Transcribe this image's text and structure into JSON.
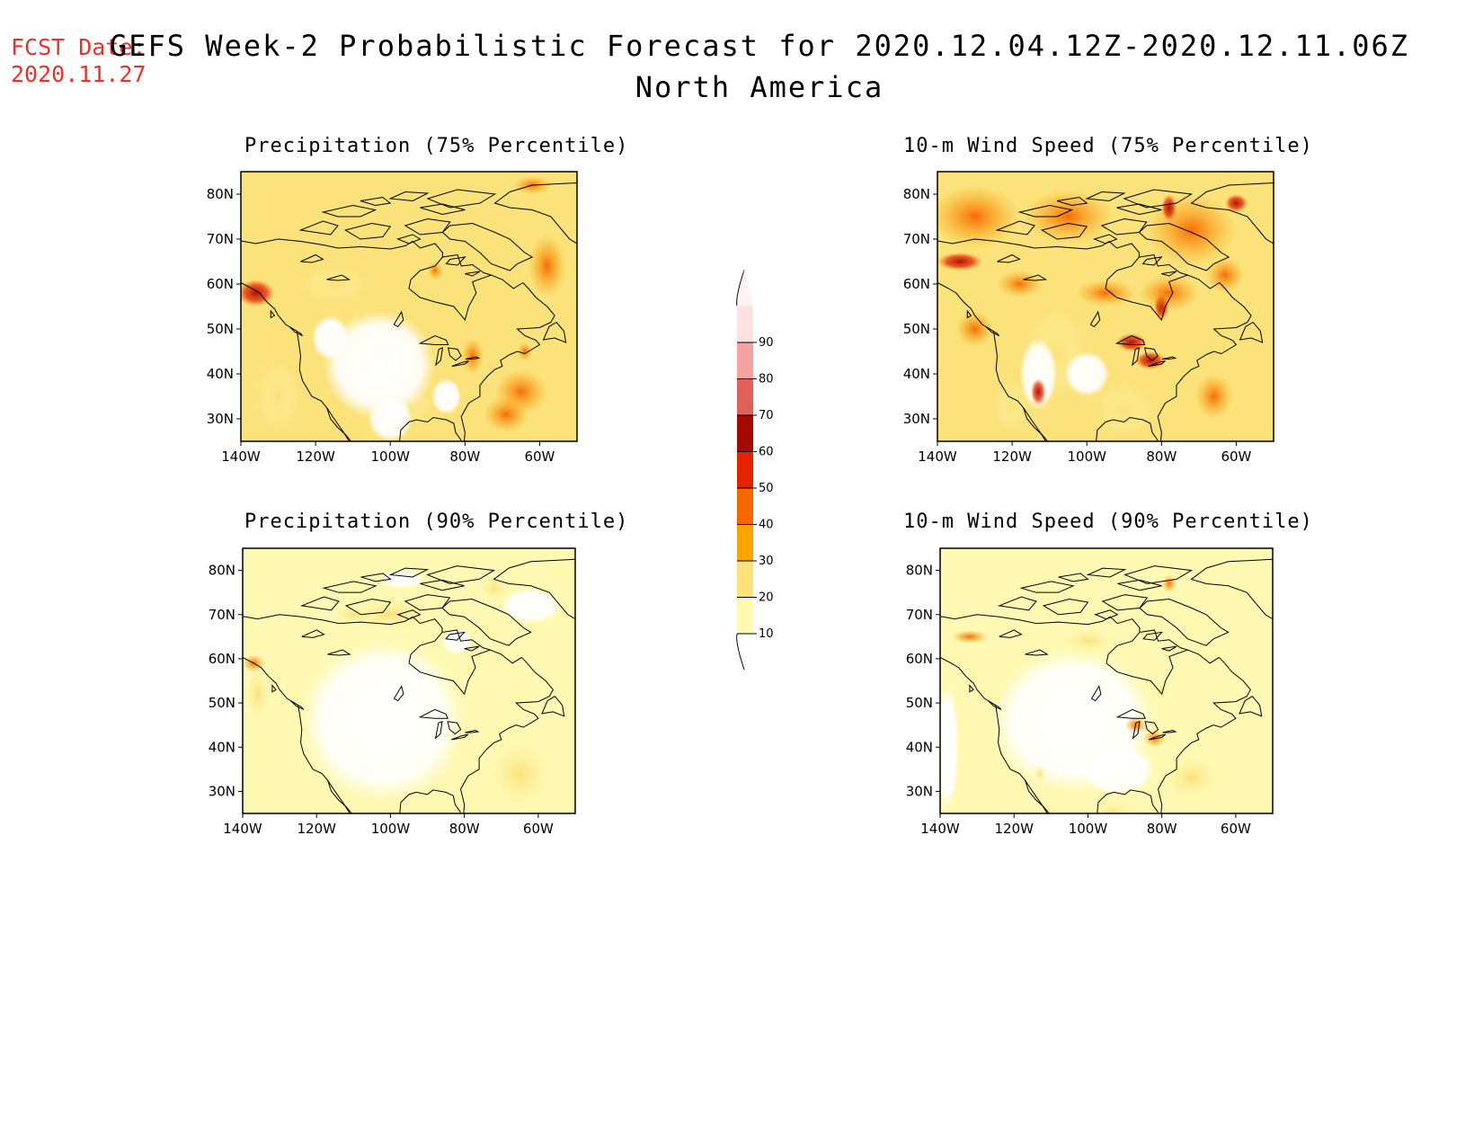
{
  "header": {
    "fcst_label": "FCST Date:",
    "fcst_date": "2020.11.27",
    "title": "GEFS Week-2 Probabilistic Forecast for 2020.12.04.12Z-2020.12.11.06Z",
    "region": "North America",
    "fcst_color": "#e8322c"
  },
  "panels": [
    {
      "id": "precip-75",
      "title": "Precipitation (75% Percentile)"
    },
    {
      "id": "wind-75",
      "title": "10-m Wind Speed (75% Percentile)"
    },
    {
      "id": "precip-90",
      "title": "Precipitation (90% Percentile)"
    },
    {
      "id": "wind-90",
      "title": "10-m Wind Speed (90% Percentile)"
    }
  ],
  "axes": {
    "lat_ticks": [
      "80N",
      "70N",
      "60N",
      "50N",
      "40N",
      "30N"
    ],
    "lon_ticks": [
      "140W",
      "120W",
      "100W",
      "80W",
      "60W"
    ],
    "lat_range": [
      25,
      85
    ],
    "lon_range": [
      -140,
      -50
    ]
  },
  "colorbar": {
    "levels": [
      "10",
      "20",
      "30",
      "40",
      "50",
      "60",
      "70",
      "80",
      "90"
    ],
    "colors": [
      "#fff9b3",
      "#fbe27a",
      "#f9a500",
      "#f86600",
      "#e32200",
      "#a50a00",
      "#e0605a",
      "#f4a3a3",
      "#fde2e2"
    ]
  }
}
